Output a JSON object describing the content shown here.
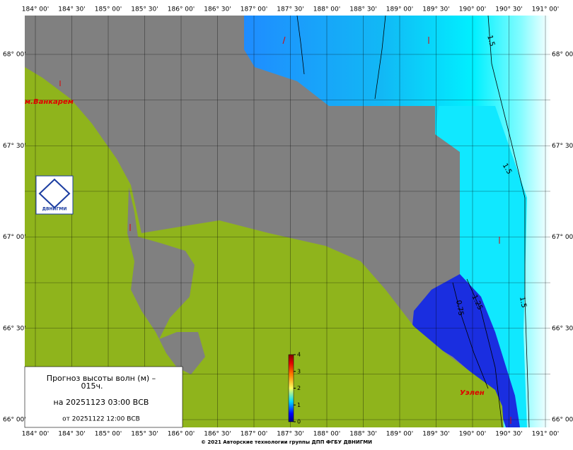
{
  "lon_labels": [
    "184° 00'",
    "184° 30'",
    "185° 00'",
    "185° 30'",
    "186° 00'",
    "186° 30'",
    "187° 00'",
    "187° 30'",
    "188° 00'",
    "188° 30'",
    "189° 00'",
    "189° 30'",
    "190° 00'",
    "190° 30'",
    "191° 00'"
  ],
  "lat_labels": [
    "68° 00'",
    "67° 30'",
    "67° 00'",
    "66° 30'",
    "66° 00'"
  ],
  "places": [
    "м.Ванкарем",
    "Уэлен"
  ],
  "contours": [
    "1.5",
    "1.5",
    "1.5",
    "1.25",
    "0.75"
  ],
  "legend": {
    "title": "Прогноз высоты волн (м) –",
    "lead": "015ч.",
    "valid": "на 20251123 03:00 ВСВ",
    "issued": "от 20251122 12:00 ВСВ"
  },
  "colorbar": {
    "range": [
      0,
      4
    ],
    "ticks": [
      0,
      1,
      2,
      3,
      4
    ]
  },
  "logo": "ДВНИГМИ",
  "footer": "© 2021 Авторские технологии группы ДПП ФГБУ ДВНИГМИ"
}
